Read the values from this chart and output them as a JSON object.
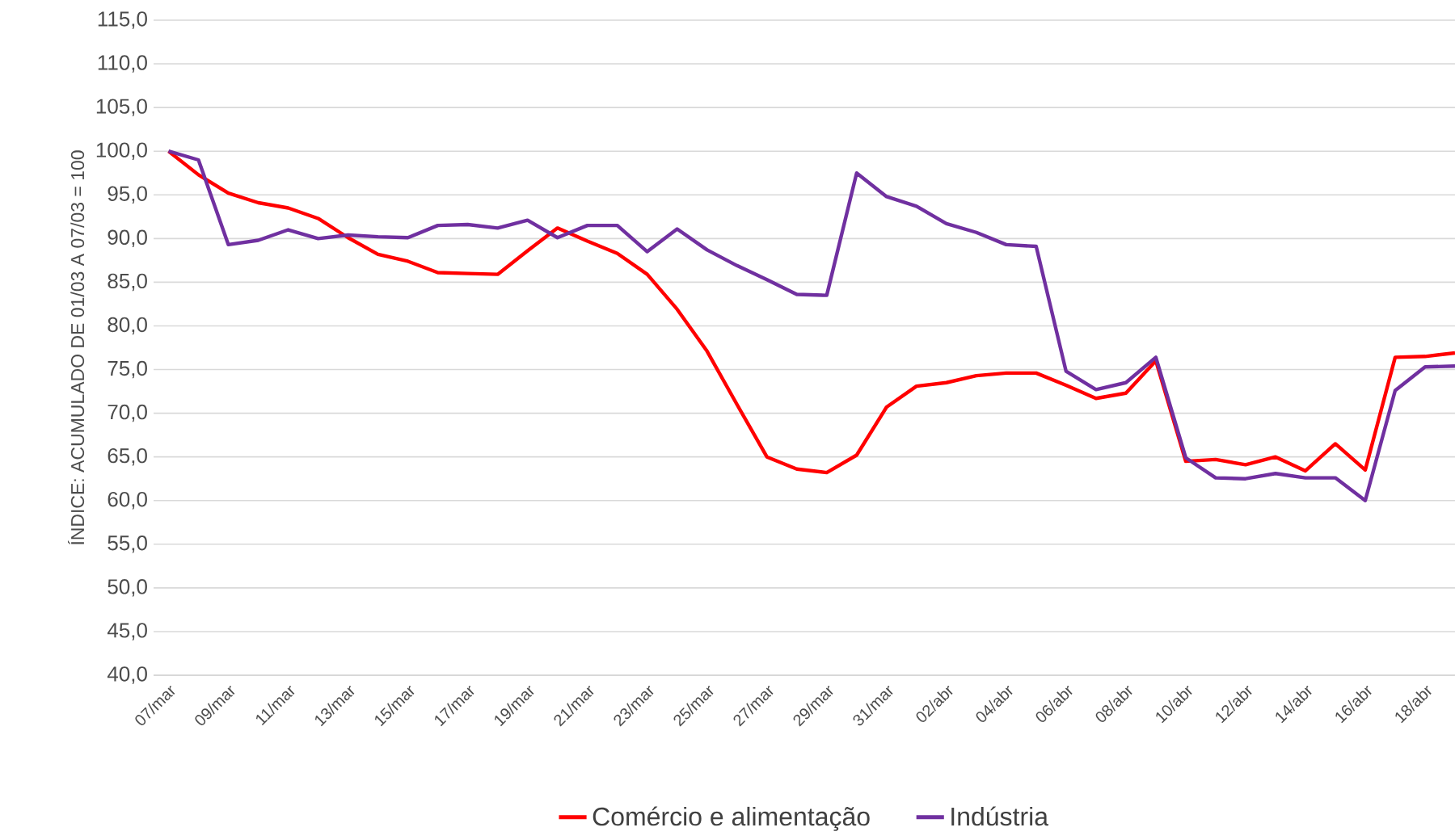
{
  "chart_data": {
    "type": "line",
    "ylabel": "ÍNDICE: ACUMULADO DE 01/03 A 07/03 = 100",
    "categories": [
      "07/mar",
      null,
      "09/mar",
      null,
      "11/mar",
      null,
      "13/mar",
      null,
      "15/mar",
      null,
      "17/mar",
      null,
      "19/mar",
      null,
      "21/mar",
      null,
      "23/mar",
      null,
      "25/mar",
      null,
      "27/mar",
      null,
      "29/mar",
      null,
      "31/mar",
      null,
      "02/abr",
      null,
      "04/abr",
      null,
      "06/abr",
      null,
      "08/abr",
      null,
      "10/abr",
      null,
      "12/abr",
      null,
      "14/abr",
      null,
      "16/abr",
      null,
      "18/abr",
      null
    ],
    "series": [
      {
        "name": "Comércio e alimentação",
        "color": "#ff0000",
        "values": [
          100,
          97.3,
          95.2,
          94.1,
          93.5,
          92.3,
          90.1,
          88.2,
          87.4,
          86.1,
          86.0,
          85.9,
          88.6,
          91.2,
          89.7,
          88.3,
          85.9,
          81.9,
          77.1,
          71.0,
          65.0,
          63.6,
          63.2,
          65.2,
          70.7,
          73.1,
          73.5,
          74.3,
          74.6,
          74.6,
          73.2,
          71.7,
          72.3,
          76.0,
          64.5,
          64.7,
          64.1,
          65.0,
          63.4,
          66.5,
          63.5,
          76.4,
          76.5,
          76.9
        ]
      },
      {
        "name": "Indústria",
        "color": "#7030a0",
        "values": [
          100,
          99.0,
          89.3,
          89.8,
          91.0,
          90.0,
          90.4,
          90.2,
          90.1,
          91.5,
          91.6,
          91.2,
          92.1,
          90.1,
          91.5,
          91.5,
          88.5,
          91.1,
          88.7,
          86.9,
          85.3,
          83.6,
          83.5,
          97.5,
          94.8,
          93.7,
          91.7,
          90.7,
          89.3,
          89.1,
          74.8,
          72.7,
          73.5,
          76.4,
          64.9,
          62.6,
          62.5,
          63.1,
          62.6,
          62.6,
          60.0,
          72.6,
          75.3,
          75.4
        ]
      }
    ],
    "ylim": [
      40,
      115
    ],
    "yticks": [
      {
        "value": 40,
        "label": "40,0"
      },
      {
        "value": 45,
        "label": "45,0"
      },
      {
        "value": 50,
        "label": "50,0"
      },
      {
        "value": 55,
        "label": "55,0"
      },
      {
        "value": 60,
        "label": "60,0"
      },
      {
        "value": 65,
        "label": "65,0"
      },
      {
        "value": 70,
        "label": "70,0"
      },
      {
        "value": 75,
        "label": "75,0"
      },
      {
        "value": 80,
        "label": "80,0"
      },
      {
        "value": 85,
        "label": "85,0"
      },
      {
        "value": 90,
        "label": "90,0"
      },
      {
        "value": 95,
        "label": "95,0"
      },
      {
        "value": 100,
        "label": "100,0"
      },
      {
        "value": 105,
        "label": "105,0"
      },
      {
        "value": 110,
        "label": "110,0"
      },
      {
        "value": 115,
        "label": "115,0"
      }
    ],
    "grid": "y",
    "legend": "bottom",
    "marker": "none",
    "line_style": "solid"
  }
}
